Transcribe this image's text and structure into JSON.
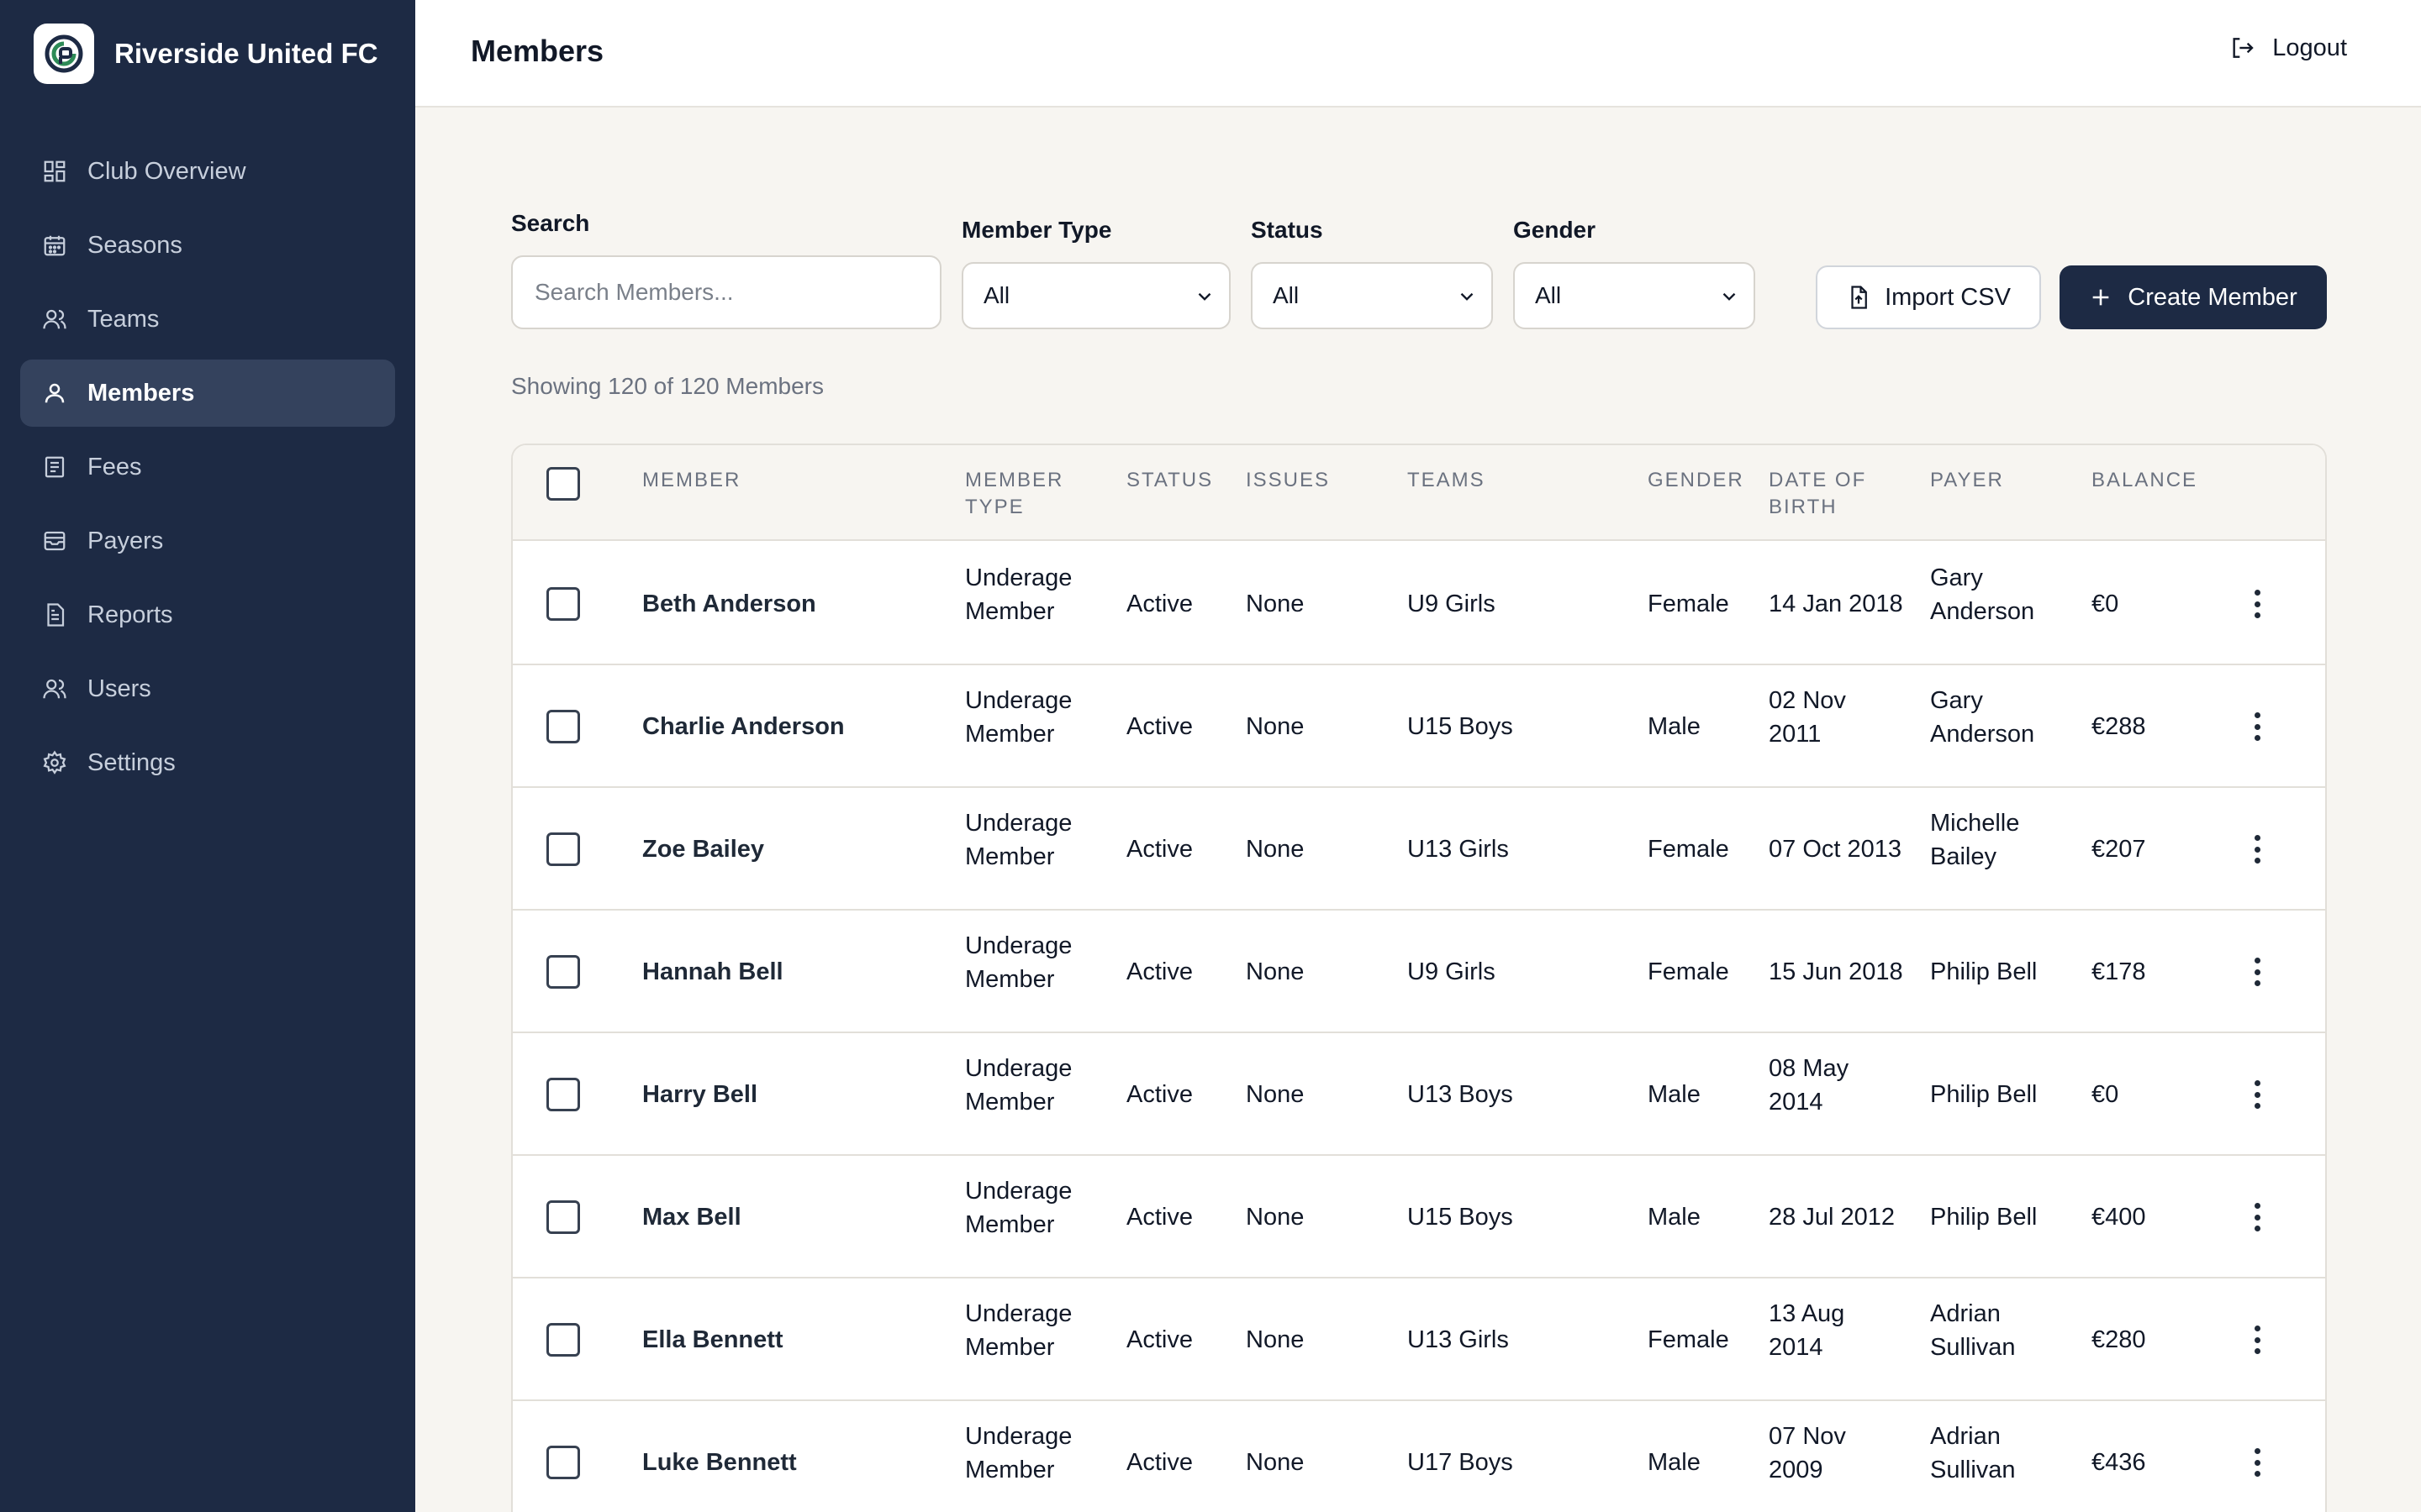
{
  "sidebar": {
    "brand_name": "Riverside United FC",
    "logo_icon": "club-logo-icon",
    "items": [
      {
        "label": "Club Overview",
        "icon": "grid-icon",
        "active": false
      },
      {
        "label": "Seasons",
        "icon": "calendar-icon",
        "active": false
      },
      {
        "label": "Teams",
        "icon": "team-icon",
        "active": false
      },
      {
        "label": "Members",
        "icon": "user-icon",
        "active": true
      },
      {
        "label": "Fees",
        "icon": "receipt-icon",
        "active": false
      },
      {
        "label": "Payers",
        "icon": "inbox-icon",
        "active": false
      },
      {
        "label": "Reports",
        "icon": "report-icon",
        "active": false
      },
      {
        "label": "Users",
        "icon": "users-icon",
        "active": false
      },
      {
        "label": "Settings",
        "icon": "gear-icon",
        "active": false
      }
    ]
  },
  "header": {
    "title": "Members",
    "logout_label": "Logout"
  },
  "filters": {
    "search_label": "Search",
    "search_placeholder": "Search Members...",
    "member_type_label": "Member Type",
    "member_type_value": "All",
    "status_label": "Status",
    "status_value": "All",
    "gender_label": "Gender",
    "gender_value": "All",
    "import_label": "Import CSV",
    "create_label": "Create Member"
  },
  "showing_text": "Showing 120 of 120 Members",
  "table": {
    "headers": {
      "member": "MEMBER",
      "member_type_1": "MEMBER",
      "member_type_2": "TYPE",
      "status": "STATUS",
      "issues": "ISSUES",
      "teams": "TEAMS",
      "gender": "GENDER",
      "dob_1": "DATE OF",
      "dob_2": "BIRTH",
      "payer": "PAYER",
      "balance": "BALANCE"
    },
    "rows": [
      {
        "name": "Beth Anderson",
        "type1": "Underage",
        "type2": "Member",
        "status": "Active",
        "issues": "None",
        "team": "U9 Girls",
        "gender": "Female",
        "dob1": "14 Jan 2018",
        "dob2": "",
        "payer1": "Gary",
        "payer2": "Anderson",
        "balance": "€0"
      },
      {
        "name": "Charlie Anderson",
        "type1": "Underage",
        "type2": "Member",
        "status": "Active",
        "issues": "None",
        "team": "U15 Boys",
        "gender": "Male",
        "dob1": "02 Nov",
        "dob2": "2011",
        "payer1": "Gary",
        "payer2": "Anderson",
        "balance": "€288"
      },
      {
        "name": "Zoe Bailey",
        "type1": "Underage",
        "type2": "Member",
        "status": "Active",
        "issues": "None",
        "team": "U13 Girls",
        "gender": "Female",
        "dob1": "07 Oct 2013",
        "dob2": "",
        "payer1": "Michelle",
        "payer2": "Bailey",
        "balance": "€207"
      },
      {
        "name": "Hannah Bell",
        "type1": "Underage",
        "type2": "Member",
        "status": "Active",
        "issues": "None",
        "team": "U9 Girls",
        "gender": "Female",
        "dob1": "15 Jun 2018",
        "dob2": "",
        "payer1": "Philip Bell",
        "payer2": "",
        "balance": "€178"
      },
      {
        "name": "Harry Bell",
        "type1": "Underage",
        "type2": "Member",
        "status": "Active",
        "issues": "None",
        "team": "U13 Boys",
        "gender": "Male",
        "dob1": "08 May",
        "dob2": "2014",
        "payer1": "Philip Bell",
        "payer2": "",
        "balance": "€0"
      },
      {
        "name": "Max Bell",
        "type1": "Underage",
        "type2": "Member",
        "status": "Active",
        "issues": "None",
        "team": "U15 Boys",
        "gender": "Male",
        "dob1": "28 Jul 2012",
        "dob2": "",
        "payer1": "Philip Bell",
        "payer2": "",
        "balance": "€400"
      },
      {
        "name": "Ella Bennett",
        "type1": "Underage",
        "type2": "Member",
        "status": "Active",
        "issues": "None",
        "team": "U13 Girls",
        "gender": "Female",
        "dob1": "13 Aug",
        "dob2": "2014",
        "payer1": "Adrian",
        "payer2": "Sullivan",
        "balance": "€280"
      },
      {
        "name": "Luke Bennett",
        "type1": "Underage",
        "type2": "Member",
        "status": "Active",
        "issues": "None",
        "team": "U17 Boys",
        "gender": "Male",
        "dob1": "07 Nov",
        "dob2": "2009",
        "payer1": "Adrian",
        "payer2": "Sullivan",
        "balance": "€436"
      }
    ]
  }
}
